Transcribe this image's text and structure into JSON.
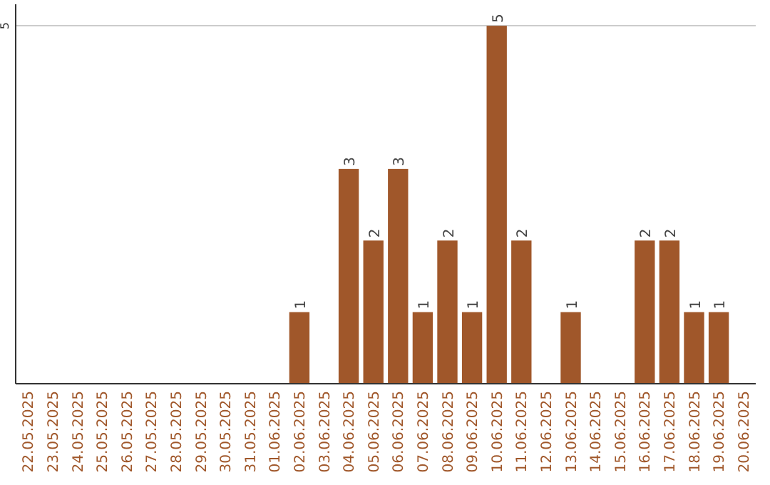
{
  "chart_data": {
    "type": "bar",
    "categories": [
      "22.05.2025",
      "23.05.2025",
      "24.05.2025",
      "25.05.2025",
      "26.05.2025",
      "27.05.2025",
      "28.05.2025",
      "29.05.2025",
      "30.05.2025",
      "31.05.2025",
      "01.06.2025",
      "02.06.2025",
      "03.06.2025",
      "04.06.2025",
      "05.06.2025",
      "06.06.2025",
      "07.06.2025",
      "08.06.2025",
      "09.06.2025",
      "10.06.2025",
      "11.06.2025",
      "12.06.2025",
      "13.06.2025",
      "14.06.2025",
      "15.06.2025",
      "16.06.2025",
      "17.06.2025",
      "18.06.2025",
      "19.06.2025",
      "20.06.2025"
    ],
    "values": [
      0,
      0,
      0,
      0,
      0,
      0,
      0,
      0,
      0,
      0,
      0,
      1,
      0,
      3,
      2,
      3,
      1,
      2,
      1,
      5,
      2,
      0,
      1,
      0,
      0,
      2,
      2,
      1,
      1,
      0
    ],
    "value_labels": [
      null,
      null,
      null,
      null,
      null,
      null,
      null,
      null,
      null,
      null,
      null,
      "1",
      null,
      "3",
      "2",
      "3",
      "1",
      "2",
      "1",
      "5",
      "2",
      null,
      "1",
      null,
      null,
      "2",
      "2",
      "1",
      "1",
      null
    ],
    "color": "#a0572a",
    "ylim": [
      0,
      5.3
    ],
    "yticks": [
      5
    ],
    "grid": "y"
  }
}
